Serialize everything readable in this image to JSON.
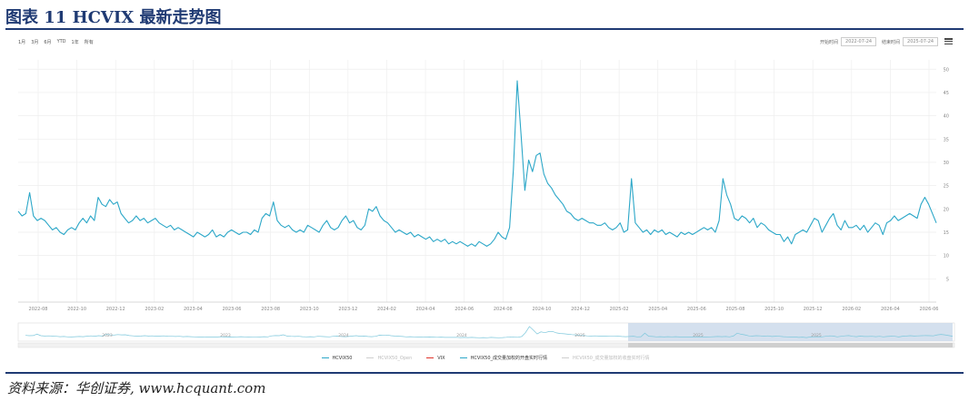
{
  "figure": {
    "title": "图表 11    HCVIX 最新走势图",
    "source": "资料来源：华创证券, www.hcquant.com"
  },
  "toolbar": {
    "range_buttons": [
      "1月",
      "3月",
      "6月",
      "YTD",
      "1年",
      "所有"
    ],
    "start_label": "开始时间",
    "start_value": "2022-07-24",
    "end_label": "结束时间",
    "end_value": "2025-07-24"
  },
  "icons": {
    "menu": "menu-icon"
  },
  "colors": {
    "series": "#2ca7c8",
    "vix": "#e0342b",
    "grid": "#eeeeee",
    "navigator_mask": "#c5d5e8"
  },
  "navigator": {
    "labels": [
      "2023",
      "2023",
      "2024",
      "2024",
      "2025",
      "2025",
      "2025"
    ],
    "selected_range": [
      0.65,
      1.0
    ]
  },
  "chart_data": {
    "type": "line",
    "title": "HCVIX 最新走势图",
    "xlabel": "",
    "ylabel": "",
    "ylim": [
      0,
      52
    ],
    "yticks": [
      5,
      10,
      15,
      20,
      25,
      30,
      35,
      40,
      45,
      50
    ],
    "y_axis_position": "right",
    "grid": true,
    "legend_position": "bottom",
    "x_ticks": [
      "2022-08",
      "2022-10",
      "2022-12",
      "2023-02",
      "2023-04",
      "2023-06",
      "2023-08",
      "2023-10",
      "2023-12",
      "2024-02",
      "2024-04",
      "2024-06",
      "2024-08",
      "2024-10",
      "2024-12",
      "2025-02",
      "2025-04",
      "2025-06",
      "2025-08",
      "2025-10",
      "2025-12",
      "2026-02",
      "2026-04",
      "2026-06"
    ],
    "legend": [
      "HCVIX50",
      "HCVIX50_Open",
      "VIX",
      "HCVIX50_成交量加权的开盘实时行情",
      "HCVIX50_成交量加权的收盘实时行情"
    ],
    "series": [
      {
        "name": "HCVIX50",
        "values": [
          19.5,
          18.5,
          19.0,
          23.5,
          18.5,
          17.5,
          18.0,
          17.5,
          16.5,
          15.5,
          16.0,
          15.0,
          14.5,
          15.5,
          16.0,
          15.5,
          17.0,
          18.0,
          17.0,
          18.5,
          17.5,
          22.5,
          21.0,
          20.5,
          22.0,
          21.0,
          21.5,
          19.0,
          18.0,
          17.0,
          17.5,
          18.5,
          17.5,
          18.0,
          17.0,
          17.5,
          18.0,
          17.0,
          16.5,
          16.0,
          16.5,
          15.5,
          16.0,
          15.5,
          15.0,
          14.5,
          14.0,
          15.0,
          14.5,
          14.0,
          14.5,
          15.5,
          14.0,
          14.5,
          14.0,
          15.0,
          15.5,
          15.0,
          14.5,
          15.0,
          15.0,
          14.5,
          15.5,
          15.0,
          18.0,
          19.0,
          18.5,
          21.5,
          17.5,
          16.5,
          16.0,
          16.5,
          15.5,
          15.0,
          15.5,
          15.0,
          16.5,
          16.0,
          15.5,
          15.0,
          16.5,
          17.5,
          16.0,
          15.5,
          16.0,
          17.5,
          18.5,
          17.0,
          17.5,
          16.0,
          15.5,
          16.5,
          20.0,
          19.5,
          20.5,
          18.5,
          17.5,
          17.0,
          16.0,
          15.0,
          15.5,
          15.0,
          14.5,
          15.0,
          14.0,
          14.5,
          14.0,
          13.5,
          14.0,
          13.0,
          13.5,
          13.0,
          13.5,
          12.5,
          13.0,
          12.5,
          13.0,
          12.5,
          12.0,
          12.5,
          12.0,
          13.0,
          12.5,
          12.0,
          12.5,
          13.5,
          15.0,
          14.0,
          13.5,
          16.0,
          28.5,
          47.5,
          36.0,
          24.0,
          30.5,
          28.0,
          31.5,
          32.0,
          27.5,
          25.5,
          24.5,
          23.0,
          22.0,
          21.0,
          19.5,
          19.0,
          18.0,
          17.5,
          18.0,
          17.5,
          17.0,
          17.0,
          16.5,
          16.5,
          17.0,
          16.0,
          15.5,
          16.0,
          17.0,
          15.0,
          15.5,
          26.5,
          17.0,
          16.0,
          15.0,
          15.5,
          14.5,
          15.5,
          15.0,
          15.5,
          14.5,
          15.0,
          14.5,
          14.0,
          15.0,
          14.5,
          15.0,
          14.5,
          15.0,
          15.5,
          16.0,
          15.5,
          16.0,
          15.0,
          17.5,
          26.5,
          23.0,
          21.0,
          18.0,
          17.5,
          18.5,
          18.0,
          17.0,
          18.0,
          16.0,
          17.0,
          16.5,
          15.5,
          15.0,
          14.5,
          14.5,
          13.0,
          14.0,
          12.5,
          14.5,
          15.0,
          15.5,
          15.0,
          16.5,
          18.0,
          17.5,
          15.0,
          16.5,
          18.0,
          19.0,
          16.5,
          15.5,
          17.5,
          16.0,
          16.0,
          16.5,
          15.5,
          16.5,
          15.0,
          16.0,
          17.0,
          16.5,
          14.5,
          17.0,
          17.5,
          18.5,
          17.5,
          18.0,
          18.5,
          19.0,
          18.5,
          18.0,
          21.0,
          22.5,
          21.0,
          19.0,
          17.0
        ]
      },
      {
        "name": "VIX",
        "values": []
      }
    ]
  }
}
